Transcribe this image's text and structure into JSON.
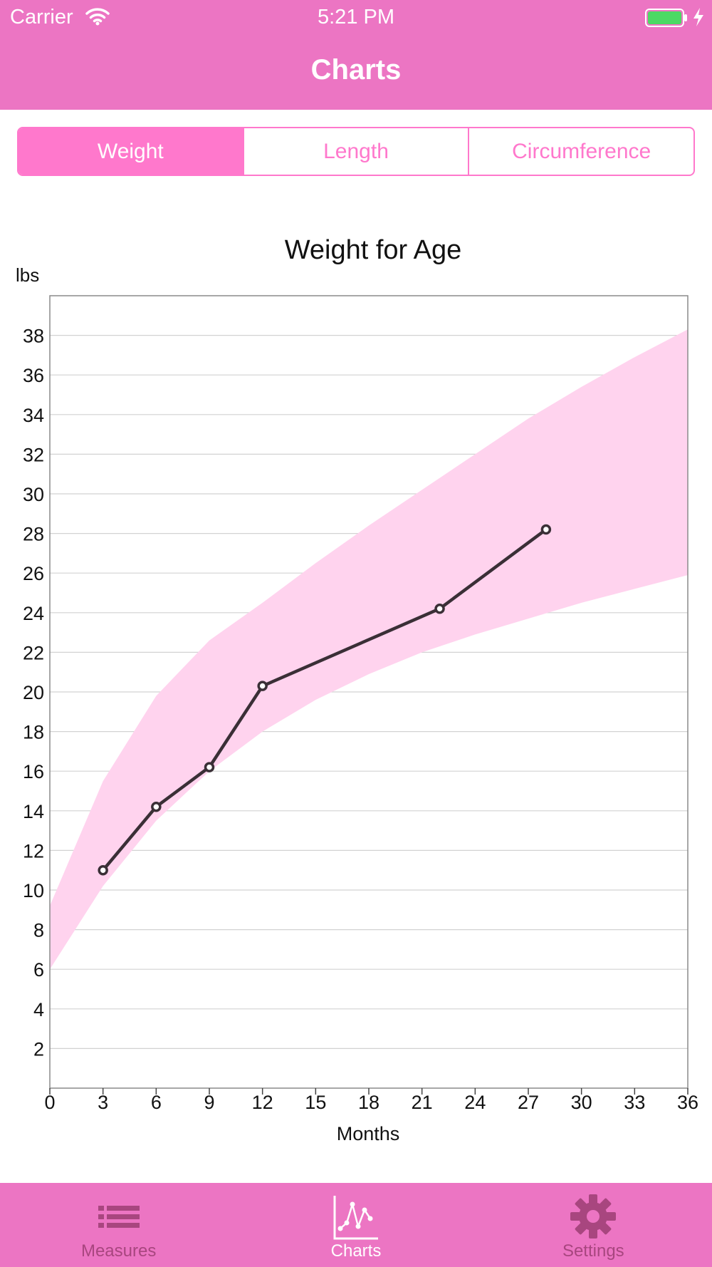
{
  "status_bar": {
    "carrier": "Carrier",
    "time": "5:21 PM"
  },
  "nav": {
    "title": "Charts"
  },
  "segments": [
    {
      "label": "Weight",
      "selected": true
    },
    {
      "label": "Length",
      "selected": false
    },
    {
      "label": "Circumference",
      "selected": false
    }
  ],
  "tabs": [
    {
      "label": "Measures",
      "icon": "list-icon",
      "active": false
    },
    {
      "label": "Charts",
      "icon": "chart-icon",
      "active": true
    },
    {
      "label": "Settings",
      "icon": "gear-icon",
      "active": false
    }
  ],
  "colors": {
    "header": "#EC75C3",
    "accent": "#FF78CC",
    "band": "#FFD3EE",
    "line": "#3A2F36",
    "inactive_tab": "#A8467F"
  },
  "chart_data": {
    "type": "line",
    "title": "Weight for Age",
    "xlabel": "Months",
    "ylabel": "lbs",
    "xlim": [
      0,
      36
    ],
    "ylim": [
      0,
      40
    ],
    "xticks": [
      0,
      3,
      6,
      9,
      12,
      15,
      18,
      21,
      24,
      27,
      30,
      33,
      36
    ],
    "yticks": [
      2,
      4,
      6,
      8,
      10,
      12,
      14,
      16,
      18,
      20,
      22,
      24,
      26,
      28,
      30,
      32,
      34,
      36,
      38
    ],
    "grid": "horizontal",
    "reference_band": {
      "x": [
        0,
        3,
        6,
        9,
        12,
        15,
        18,
        21,
        24,
        27,
        30,
        33,
        36
      ],
      "upper": [
        9.2,
        15.5,
        19.8,
        22.6,
        24.5,
        26.5,
        28.4,
        30.2,
        32.0,
        33.8,
        35.4,
        36.9,
        38.3
      ],
      "lower": [
        6.0,
        10.2,
        13.5,
        16.0,
        18.0,
        19.6,
        20.9,
        22.0,
        22.9,
        23.7,
        24.5,
        25.2,
        25.9
      ]
    },
    "series": [
      {
        "x": [
          3,
          6,
          9,
          12,
          22,
          28
        ],
        "values": [
          11.0,
          14.2,
          16.2,
          20.3,
          24.2,
          28.2
        ]
      }
    ]
  }
}
